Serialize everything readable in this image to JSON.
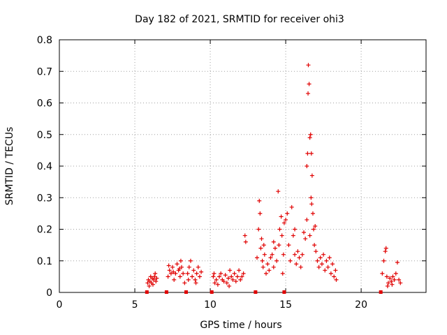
{
  "chart_data": {
    "type": "scatter",
    "title": "Day 182 of 2021, SRMTID for receiver ohi3",
    "xlabel": "GPS time / hours",
    "ylabel": "SRMTID / TECUs",
    "xlim": [
      0,
      24.3
    ],
    "ylim": [
      0,
      0.8
    ],
    "xticks": [
      0,
      5,
      10,
      15,
      20
    ],
    "xtick_labels": [
      "0",
      "5",
      "10",
      "15",
      "20"
    ],
    "yticks": [
      0,
      0.1,
      0.2,
      0.3,
      0.4,
      0.5,
      0.6,
      0.7,
      0.8
    ],
    "ytick_labels": [
      "0",
      "0.1",
      "0.2",
      "0.3",
      "0.4",
      "0.5",
      "0.6",
      "0.7",
      "0.8"
    ],
    "grid": true,
    "color": "#e00000",
    "marker": "plus",
    "zero_markers_x": [
      5.8,
      7.1,
      8.4,
      10.1,
      13.0,
      14.9,
      21.3
    ],
    "series": [
      {
        "name": "SRMTID",
        "points": [
          [
            5.85,
            0.03
          ],
          [
            5.9,
            0.04
          ],
          [
            5.95,
            0.02
          ],
          [
            6.0,
            0.035
          ],
          [
            6.05,
            0.05
          ],
          [
            6.1,
            0.03
          ],
          [
            6.15,
            0.045
          ],
          [
            6.2,
            0.025
          ],
          [
            6.25,
            0.04
          ],
          [
            6.3,
            0.05
          ],
          [
            6.35,
            0.06
          ],
          [
            6.4,
            0.035
          ],
          [
            6.45,
            0.045
          ],
          [
            7.2,
            0.05
          ],
          [
            7.3,
            0.07
          ],
          [
            7.4,
            0.06
          ],
          [
            7.5,
            0.08
          ],
          [
            7.6,
            0.04
          ],
          [
            7.7,
            0.06
          ],
          [
            7.8,
            0.09
          ],
          [
            7.9,
            0.07
          ],
          [
            8.0,
            0.05
          ],
          [
            8.1,
            0.08
          ],
          [
            8.2,
            0.06
          ],
          [
            8.3,
            0.03
          ],
          [
            7.25,
            0.085
          ],
          [
            7.55,
            0.065
          ],
          [
            8.05,
            0.1
          ],
          [
            7.95,
            0.075
          ],
          [
            8.5,
            0.06
          ],
          [
            8.6,
            0.08
          ],
          [
            8.7,
            0.1
          ],
          [
            8.8,
            0.05
          ],
          [
            8.9,
            0.07
          ],
          [
            9.0,
            0.04
          ],
          [
            9.1,
            0.06
          ],
          [
            9.2,
            0.08
          ],
          [
            9.3,
            0.05
          ],
          [
            9.4,
            0.065
          ],
          [
            8.55,
            0.04
          ],
          [
            9.05,
            0.03
          ],
          [
            10.2,
            0.05
          ],
          [
            10.3,
            0.03
          ],
          [
            10.4,
            0.04
          ],
          [
            10.5,
            0.025
          ],
          [
            10.6,
            0.05
          ],
          [
            10.7,
            0.06
          ],
          [
            10.8,
            0.04
          ],
          [
            10.9,
            0.035
          ],
          [
            11.0,
            0.055
          ],
          [
            11.1,
            0.03
          ],
          [
            11.2,
            0.045
          ],
          [
            11.3,
            0.07
          ],
          [
            11.4,
            0.05
          ],
          [
            11.5,
            0.04
          ],
          [
            11.6,
            0.06
          ],
          [
            11.7,
            0.035
          ],
          [
            11.8,
            0.05
          ],
          [
            11.9,
            0.07
          ],
          [
            12.0,
            0.04
          ],
          [
            12.1,
            0.05
          ],
          [
            12.2,
            0.06
          ],
          [
            12.3,
            0.18
          ],
          [
            12.35,
            0.16
          ],
          [
            11.25,
            0.02
          ],
          [
            10.25,
            0.06
          ],
          [
            13.1,
            0.11
          ],
          [
            13.2,
            0.2
          ],
          [
            13.25,
            0.29
          ],
          [
            13.3,
            0.25
          ],
          [
            13.35,
            0.14
          ],
          [
            13.4,
            0.17
          ],
          [
            13.45,
            0.1
          ],
          [
            13.5,
            0.08
          ],
          [
            13.55,
            0.15
          ],
          [
            13.6,
            0.12
          ],
          [
            13.7,
            0.06
          ],
          [
            13.8,
            0.09
          ],
          [
            13.9,
            0.07
          ],
          [
            14.0,
            0.11
          ],
          [
            14.1,
            0.12
          ],
          [
            14.2,
            0.08
          ],
          [
            14.3,
            0.14
          ],
          [
            14.4,
            0.1
          ],
          [
            14.5,
            0.32
          ],
          [
            14.55,
            0.15
          ],
          [
            14.6,
            0.2
          ],
          [
            14.7,
            0.24
          ],
          [
            14.75,
            0.18
          ],
          [
            14.8,
            0.06
          ],
          [
            14.85,
            0.12
          ],
          [
            14.9,
            0.22
          ],
          [
            15.0,
            0.23
          ],
          [
            15.1,
            0.25
          ],
          [
            15.2,
            0.15
          ],
          [
            15.3,
            0.1
          ],
          [
            15.4,
            0.27
          ],
          [
            15.5,
            0.18
          ],
          [
            15.6,
            0.12
          ],
          [
            15.7,
            0.09
          ],
          [
            15.8,
            0.13
          ],
          [
            15.9,
            0.11
          ],
          [
            16.0,
            0.08
          ],
          [
            16.1,
            0.12
          ],
          [
            16.2,
            0.19
          ],
          [
            16.3,
            0.17
          ],
          [
            16.4,
            0.23
          ],
          [
            16.45,
            0.44
          ],
          [
            16.5,
            0.72
          ],
          [
            16.55,
            0.66
          ],
          [
            16.48,
            0.63
          ],
          [
            16.6,
            0.49
          ],
          [
            16.65,
            0.5
          ],
          [
            16.7,
            0.44
          ],
          [
            16.75,
            0.37
          ],
          [
            16.68,
            0.3
          ],
          [
            16.72,
            0.28
          ],
          [
            16.8,
            0.25
          ],
          [
            16.85,
            0.2
          ],
          [
            16.9,
            0.15
          ],
          [
            16.95,
            0.21
          ],
          [
            17.0,
            0.13
          ],
          [
            17.1,
            0.1
          ],
          [
            17.2,
            0.08
          ],
          [
            17.3,
            0.11
          ],
          [
            17.4,
            0.09
          ],
          [
            17.5,
            0.12
          ],
          [
            17.6,
            0.07
          ],
          [
            17.7,
            0.1
          ],
          [
            17.8,
            0.08
          ],
          [
            17.9,
            0.11
          ],
          [
            18.0,
            0.06
          ],
          [
            18.1,
            0.09
          ],
          [
            18.2,
            0.05
          ],
          [
            18.3,
            0.07
          ],
          [
            18.35,
            0.04
          ],
          [
            16.4,
            0.4
          ],
          [
            16.6,
            0.18
          ],
          [
            15.6,
            0.2
          ],
          [
            14.2,
            0.16
          ],
          [
            21.4,
            0.06
          ],
          [
            21.5,
            0.1
          ],
          [
            21.6,
            0.13
          ],
          [
            21.65,
            0.14
          ],
          [
            21.7,
            0.05
          ],
          [
            21.8,
            0.03
          ],
          [
            21.9,
            0.045
          ],
          [
            22.0,
            0.035
          ],
          [
            22.1,
            0.05
          ],
          [
            22.2,
            0.04
          ],
          [
            22.3,
            0.06
          ],
          [
            22.4,
            0.095
          ],
          [
            22.5,
            0.04
          ],
          [
            22.6,
            0.03
          ],
          [
            21.75,
            0.02
          ],
          [
            22.05,
            0.025
          ]
        ]
      }
    ]
  }
}
